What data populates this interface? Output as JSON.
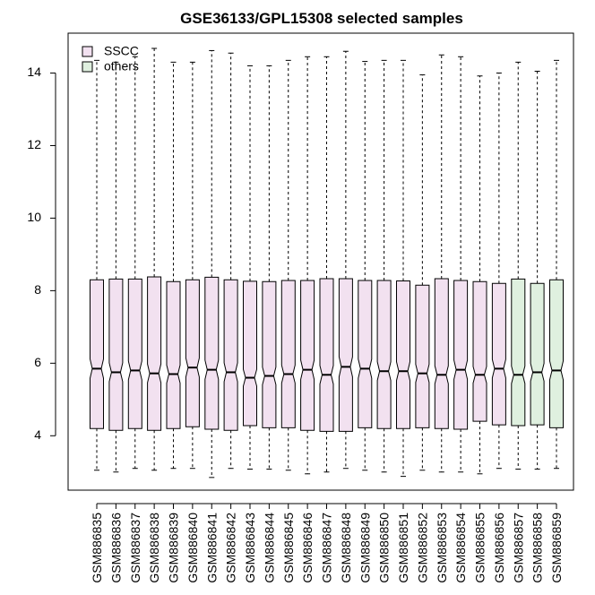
{
  "chart_data": {
    "type": "boxplot",
    "title": "GSE36133/GPL15308 selected samples",
    "xlabel": "",
    "ylabel": "",
    "ylim": [
      2.5,
      15.1
    ],
    "y_ticks": [
      4,
      6,
      8,
      10,
      12,
      14
    ],
    "grid": false,
    "legend_position": "top-left",
    "legend": [
      {
        "label": "SSCC",
        "color": "#f2e1f0"
      },
      {
        "label": "others",
        "color": "#dff0df"
      }
    ],
    "groups": [
      {
        "name": "SSCC",
        "color": "#f2e1f0"
      },
      {
        "name": "others",
        "color": "#dff0df"
      }
    ],
    "samples": [
      {
        "label": "GSM886835",
        "group": "SSCC",
        "whisker_low": 3.05,
        "q1": 4.2,
        "median": 5.85,
        "q3": 8.3,
        "whisker_high": 14.35
      },
      {
        "label": "GSM886836",
        "group": "SSCC",
        "whisker_low": 3.0,
        "q1": 4.15,
        "median": 5.75,
        "q3": 8.32,
        "whisker_high": 14.3
      },
      {
        "label": "GSM886837",
        "group": "SSCC",
        "whisker_low": 3.1,
        "q1": 4.2,
        "median": 5.8,
        "q3": 8.32,
        "whisker_high": 14.45
      },
      {
        "label": "GSM886838",
        "group": "SSCC",
        "whisker_low": 3.05,
        "q1": 4.15,
        "median": 5.72,
        "q3": 8.38,
        "whisker_high": 14.68
      },
      {
        "label": "GSM886839",
        "group": "SSCC",
        "whisker_low": 3.1,
        "q1": 4.2,
        "median": 5.7,
        "q3": 8.25,
        "whisker_high": 14.3
      },
      {
        "label": "GSM886840",
        "group": "SSCC",
        "whisker_low": 3.1,
        "q1": 4.25,
        "median": 5.88,
        "q3": 8.3,
        "whisker_high": 14.3
      },
      {
        "label": "GSM886841",
        "group": "SSCC",
        "whisker_low": 2.85,
        "q1": 4.18,
        "median": 5.82,
        "q3": 8.37,
        "whisker_high": 14.62
      },
      {
        "label": "GSM886842",
        "group": "SSCC",
        "whisker_low": 3.1,
        "q1": 4.15,
        "median": 5.75,
        "q3": 8.3,
        "whisker_high": 14.55
      },
      {
        "label": "GSM886843",
        "group": "SSCC",
        "whisker_low": 3.08,
        "q1": 4.28,
        "median": 5.6,
        "q3": 8.26,
        "whisker_high": 14.2
      },
      {
        "label": "GSM886844",
        "group": "SSCC",
        "whisker_low": 3.08,
        "q1": 4.22,
        "median": 5.65,
        "q3": 8.25,
        "whisker_high": 14.2
      },
      {
        "label": "GSM886845",
        "group": "SSCC",
        "whisker_low": 3.05,
        "q1": 4.22,
        "median": 5.7,
        "q3": 8.28,
        "whisker_high": 14.35
      },
      {
        "label": "GSM886846",
        "group": "SSCC",
        "whisker_low": 2.95,
        "q1": 4.15,
        "median": 5.82,
        "q3": 8.28,
        "whisker_high": 14.45
      },
      {
        "label": "GSM886847",
        "group": "SSCC",
        "whisker_low": 3.0,
        "q1": 4.12,
        "median": 5.68,
        "q3": 8.33,
        "whisker_high": 14.45
      },
      {
        "label": "GSM886848",
        "group": "SSCC",
        "whisker_low": 3.1,
        "q1": 4.12,
        "median": 5.9,
        "q3": 8.33,
        "whisker_high": 14.6
      },
      {
        "label": "GSM886849",
        "group": "SSCC",
        "whisker_low": 3.05,
        "q1": 4.22,
        "median": 5.85,
        "q3": 8.28,
        "whisker_high": 14.32
      },
      {
        "label": "GSM886850",
        "group": "SSCC",
        "whisker_low": 3.0,
        "q1": 4.2,
        "median": 5.78,
        "q3": 8.28,
        "whisker_high": 14.35
      },
      {
        "label": "GSM886851",
        "group": "SSCC",
        "whisker_low": 2.88,
        "q1": 4.2,
        "median": 5.78,
        "q3": 8.27,
        "whisker_high": 14.35
      },
      {
        "label": "GSM886852",
        "group": "SSCC",
        "whisker_low": 3.05,
        "q1": 4.22,
        "median": 5.72,
        "q3": 8.15,
        "whisker_high": 13.95
      },
      {
        "label": "GSM886853",
        "group": "SSCC",
        "whisker_low": 3.0,
        "q1": 4.2,
        "median": 5.68,
        "q3": 8.33,
        "whisker_high": 14.5
      },
      {
        "label": "GSM886854",
        "group": "SSCC",
        "whisker_low": 3.0,
        "q1": 4.18,
        "median": 5.82,
        "q3": 8.28,
        "whisker_high": 14.45
      },
      {
        "label": "GSM886855",
        "group": "SSCC",
        "whisker_low": 2.95,
        "q1": 4.4,
        "median": 5.68,
        "q3": 8.25,
        "whisker_high": 13.92
      },
      {
        "label": "GSM886856",
        "group": "SSCC",
        "whisker_low": 3.1,
        "q1": 4.3,
        "median": 5.85,
        "q3": 8.2,
        "whisker_high": 14.0
      },
      {
        "label": "GSM886857",
        "group": "others",
        "whisker_low": 3.08,
        "q1": 4.28,
        "median": 5.68,
        "q3": 8.32,
        "whisker_high": 14.3
      },
      {
        "label": "GSM886858",
        "group": "others",
        "whisker_low": 3.08,
        "q1": 4.3,
        "median": 5.75,
        "q3": 8.2,
        "whisker_high": 14.05
      },
      {
        "label": "GSM886859",
        "group": "others",
        "whisker_low": 3.1,
        "q1": 4.22,
        "median": 5.8,
        "q3": 8.3,
        "whisker_high": 14.35
      }
    ]
  }
}
